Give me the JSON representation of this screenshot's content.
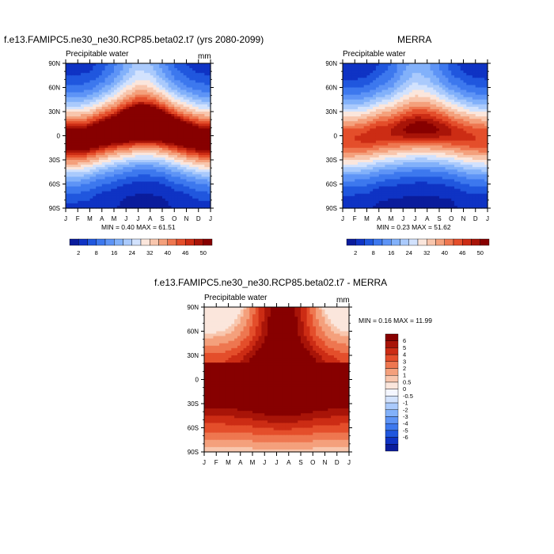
{
  "chart_data": [
    {
      "type": "heatmap",
      "title": "f.e13.FAMIPC5.ne30_ne30.RCP85.beta02.t7 (yrs 2080-2099)",
      "subtitle_left": "Precipitable water",
      "units": "mm",
      "x_tick_labels": [
        "J",
        "F",
        "M",
        "A",
        "M",
        "J",
        "J",
        "A",
        "S",
        "O",
        "N",
        "D",
        "J"
      ],
      "y_tick_labels": [
        "90N",
        "60N",
        "30N",
        "0",
        "30S",
        "60S",
        "90S"
      ],
      "y_values": [
        90,
        60,
        30,
        0,
        -30,
        -60,
        -90
      ],
      "stats": "MIN =   0.40 MAX =  61.51",
      "min": 0.4,
      "max": 61.51,
      "colorbar_labels": [
        "2",
        "8",
        "16",
        "24",
        "32",
        "40",
        "46",
        "50"
      ],
      "colorbar_colors": [
        "#0a1c9c",
        "#0f33c4",
        "#2057de",
        "#3d78ee",
        "#5e94f6",
        "#82b1fa",
        "#aacafc",
        "#d2e2fd",
        "#fbe6dc",
        "#f8c6ad",
        "#f4a07c",
        "#ee7750",
        "#e44e2b",
        "#cc2c14",
        "#a81408",
        "#870000"
      ],
      "field": {
        "eq_months": [
          1,
          2,
          3,
          4,
          5,
          6,
          7,
          8,
          9,
          10,
          11,
          12
        ],
        "peak_lat_by_month": [
          -6,
          -6,
          -3,
          2,
          6,
          10,
          13,
          13,
          10,
          5,
          0,
          -4
        ],
        "peak_value_by_month": [
          55,
          55,
          55,
          56,
          57,
          60,
          61,
          61,
          59,
          57,
          56,
          55
        ],
        "north_pole_value_by_month": [
          3,
          3,
          3,
          5,
          9,
          15,
          20,
          18,
          12,
          6,
          4,
          3
        ],
        "south_pole_value_by_month": [
          3,
          3,
          3,
          2,
          2,
          1,
          1,
          1,
          1,
          2,
          2,
          3
        ]
      }
    },
    {
      "type": "heatmap",
      "title": "MERRA",
      "subtitle_left": "Precipitable water",
      "units": "",
      "x_tick_labels": [
        "J",
        "F",
        "M",
        "A",
        "M",
        "J",
        "J",
        "A",
        "S",
        "O",
        "N",
        "D",
        "J"
      ],
      "y_tick_labels": [
        "90N",
        "60N",
        "30N",
        "0",
        "30S",
        "60S",
        "90S"
      ],
      "y_values": [
        90,
        60,
        30,
        0,
        -30,
        -60,
        -90
      ],
      "stats": "MIN =   0.23 MAX =  51.62",
      "min": 0.23,
      "max": 51.62,
      "colorbar_labels": [
        "2",
        "8",
        "16",
        "24",
        "32",
        "40",
        "46",
        "50"
      ],
      "colorbar_colors": [
        "#0a1c9c",
        "#0f33c4",
        "#2057de",
        "#3d78ee",
        "#5e94f6",
        "#82b1fa",
        "#aacafc",
        "#d2e2fd",
        "#fbe6dc",
        "#f8c6ad",
        "#f4a07c",
        "#ee7750",
        "#e44e2b",
        "#cc2c14",
        "#a81408",
        "#870000"
      ],
      "field": {
        "peak_lat_by_month": [
          -4,
          -4,
          -2,
          2,
          4,
          7,
          9,
          9,
          7,
          4,
          0,
          -3
        ],
        "peak_value_by_month": [
          46,
          46,
          47,
          48,
          48,
          50,
          51,
          51,
          50,
          48,
          47,
          46
        ],
        "north_pole_value_by_month": [
          2,
          2,
          2,
          4,
          7,
          13,
          17,
          15,
          10,
          5,
          3,
          2
        ],
        "south_pole_value_by_month": [
          2,
          2,
          2,
          1,
          1,
          1,
          1,
          1,
          1,
          1,
          2,
          2
        ]
      }
    },
    {
      "type": "heatmap",
      "title": "f.e13.FAMIPC5.ne30_ne30.RCP85.beta02.t7 - MERRA",
      "subtitle_left": "Precipitable water",
      "units": "mm",
      "x_tick_labels": [
        "J",
        "F",
        "M",
        "A",
        "M",
        "J",
        "J",
        "A",
        "S",
        "O",
        "N",
        "D",
        "J"
      ],
      "y_tick_labels": [
        "90N",
        "60N",
        "30N",
        "0",
        "30S",
        "60S",
        "90S"
      ],
      "y_values": [
        90,
        60,
        30,
        0,
        -30,
        -60,
        -90
      ],
      "stats": "MIN =   0.16 MAX =  11.99",
      "min": 0.16,
      "max": 11.99,
      "colorbar_labels": [
        "6",
        "5",
        "4",
        "3",
        "2",
        "1",
        "0.5",
        "0",
        "-0.5",
        "-1",
        "-2",
        "-3",
        "-4",
        "-5",
        "-6"
      ],
      "colorbar_colors": [
        "#870000",
        "#a81408",
        "#cc2c14",
        "#e44e2b",
        "#ee7750",
        "#f4a07c",
        "#f8c6ad",
        "#fbe6dc",
        "#f4f6ff",
        "#d2e2fd",
        "#aacafc",
        "#82b1fa",
        "#5e94f6",
        "#3d78ee",
        "#2057de",
        "#0f33c4",
        "#0a1c9c"
      ]
    }
  ]
}
